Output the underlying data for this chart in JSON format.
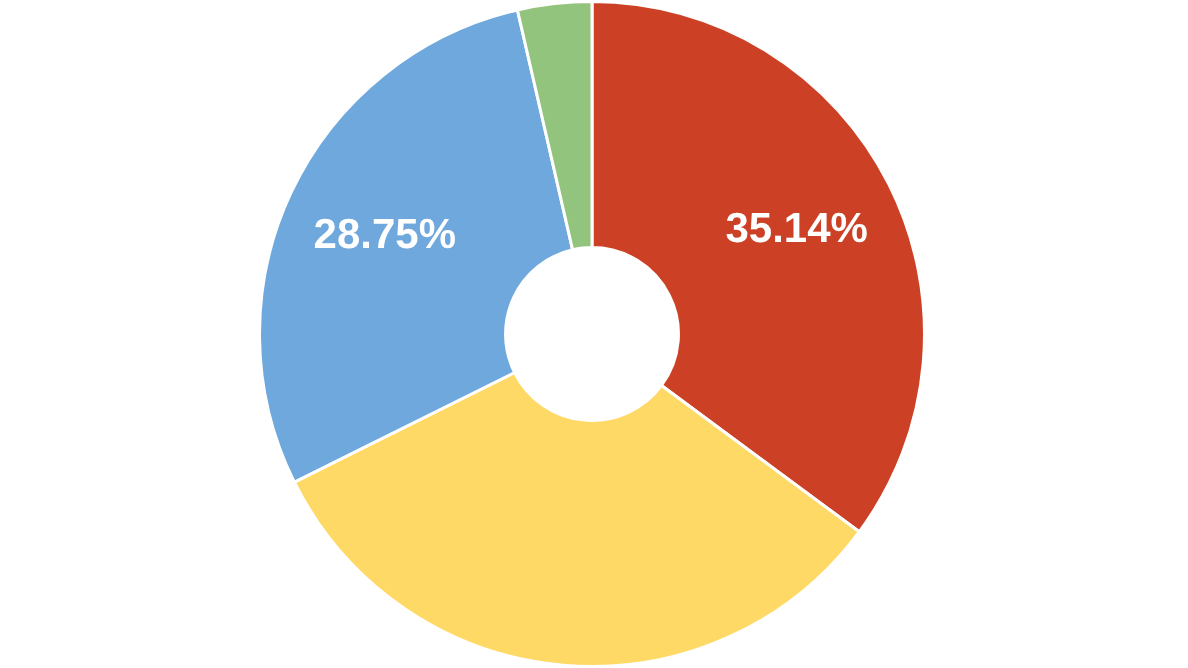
{
  "chart_data": {
    "type": "donut",
    "categories": [
      null,
      null,
      null,
      null
    ],
    "values": [
      35.14,
      32.51,
      28.75,
      3.6
    ],
    "colors": [
      "#cc4125",
      "#ffd966",
      "#6fa8dc",
      "#93c47d"
    ],
    "value_labels": [
      "35.14%",
      null,
      "28.75%",
      null
    ]
  }
}
